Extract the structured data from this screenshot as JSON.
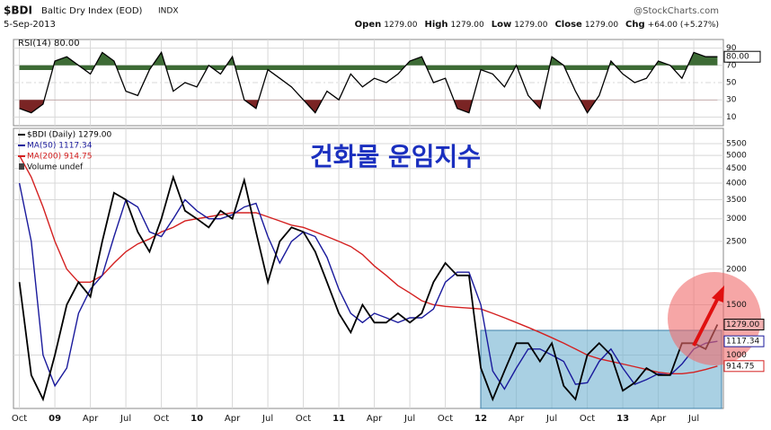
{
  "chart_data": {
    "type": "line",
    "symbol": "$BDI",
    "description": "Baltic Dry Index (EOD)",
    "exchange": "INDX",
    "date": "5-Sep-2013",
    "source": "@StockCharts.com",
    "quote": [
      {
        "label": "Open",
        "value": "1279.00"
      },
      {
        "label": "High",
        "value": "1279.00"
      },
      {
        "label": "Low",
        "value": "1279.00"
      },
      {
        "label": "Close",
        "value": "1279.00"
      },
      {
        "label": "Chg",
        "value": "+64.00 (+5.27%)"
      }
    ],
    "title": "건화물 운임지수",
    "volume_label": "Volume undef",
    "categories": [
      "Oct",
      null,
      null,
      "09",
      null,
      null,
      "Apr",
      null,
      null,
      "Jul",
      null,
      null,
      "Oct",
      null,
      null,
      "10",
      null,
      null,
      "Apr",
      null,
      null,
      "Jul",
      null,
      null,
      "Oct",
      null,
      null,
      "11",
      null,
      null,
      "Apr",
      null,
      null,
      "Jul",
      null,
      null,
      "Oct",
      null,
      null,
      "12",
      null,
      null,
      "Apr",
      null,
      null,
      "Jul",
      null,
      null,
      "Oct",
      null,
      null,
      "13",
      null,
      null,
      "Apr",
      null,
      null,
      "Jul",
      null,
      null
    ],
    "log_scale": true,
    "grid": true,
    "ylim": [
      650,
      6000
    ],
    "yticks": [
      1000,
      1500,
      2000,
      2500,
      3000,
      3500,
      4000,
      4500,
      5000,
      5500
    ],
    "series": [
      {
        "name": "$BDI (Daily) 1279.00",
        "color": "#000000",
        "values": [
          1800,
          850,
          700,
          1000,
          1500,
          1800,
          1600,
          2500,
          3700,
          3500,
          2700,
          2300,
          3000,
          4200,
          3200,
          3000,
          2800,
          3200,
          3000,
          4100,
          2700,
          1800,
          2500,
          2800,
          2700,
          2300,
          1800,
          1400,
          1200,
          1500,
          1300,
          1300,
          1400,
          1300,
          1400,
          1800,
          2100,
          1900,
          1900,
          900,
          700,
          880,
          1100,
          1100,
          950,
          1100,
          780,
          700,
          1000,
          1100,
          1000,
          750,
          800,
          900,
          850,
          850,
          1100,
          1100,
          1050,
          1279
        ],
        "value_labels": [
          null,
          null,
          null,
          null,
          null,
          null,
          null,
          null,
          null,
          null,
          null,
          null,
          null,
          null,
          null,
          null,
          null,
          null,
          null,
          null,
          null,
          null,
          null,
          null,
          null,
          null,
          null,
          null,
          null,
          null,
          null,
          null,
          null,
          null,
          null,
          null,
          null,
          null,
          null,
          null,
          null,
          null,
          null,
          null,
          null,
          null,
          null,
          null,
          null,
          null,
          null,
          null,
          null,
          null,
          null,
          null,
          null,
          null,
          null,
          "1279.00"
        ]
      },
      {
        "name": "MA(50) 1117.34",
        "color": "#1a1a9c",
        "values": [
          4000,
          2500,
          1000,
          780,
          900,
          1400,
          1700,
          1900,
          2600,
          3500,
          3300,
          2700,
          2600,
          3000,
          3500,
          3200,
          3000,
          3000,
          3100,
          3300,
          3400,
          2600,
          2100,
          2500,
          2700,
          2600,
          2200,
          1700,
          1400,
          1300,
          1400,
          1350,
          1300,
          1350,
          1350,
          1450,
          1800,
          1950,
          1950,
          1500,
          880,
          760,
          900,
          1050,
          1050,
          1000,
          950,
          790,
          800,
          950,
          1050,
          900,
          790,
          820,
          860,
          850,
          930,
          1050,
          1100,
          1117.34
        ],
        "value_labels": [
          null,
          null,
          null,
          null,
          null,
          null,
          null,
          null,
          null,
          null,
          null,
          null,
          null,
          null,
          null,
          null,
          null,
          null,
          null,
          null,
          null,
          null,
          null,
          null,
          null,
          null,
          null,
          null,
          null,
          null,
          null,
          null,
          null,
          null,
          null,
          null,
          null,
          null,
          null,
          null,
          null,
          null,
          null,
          null,
          null,
          null,
          null,
          null,
          null,
          null,
          null,
          null,
          null,
          null,
          null,
          null,
          null,
          null,
          null,
          "1117.34"
        ]
      },
      {
        "name": "MA(200) 914.75",
        "color": "#d42020",
        "values": [
          5000,
          4200,
          3300,
          2500,
          2000,
          1800,
          1800,
          1900,
          2100,
          2300,
          2450,
          2550,
          2700,
          2800,
          2950,
          3000,
          3050,
          3100,
          3150,
          3150,
          3150,
          3050,
          2950,
          2850,
          2800,
          2700,
          2600,
          2500,
          2400,
          2250,
          2050,
          1900,
          1750,
          1650,
          1550,
          1500,
          1480,
          1470,
          1460,
          1450,
          1400,
          1350,
          1300,
          1250,
          1200,
          1150,
          1100,
          1050,
          1000,
          970,
          950,
          930,
          910,
          890,
          870,
          860,
          860,
          870,
          890,
          914.75
        ],
        "value_labels": [
          null,
          null,
          null,
          null,
          null,
          null,
          null,
          null,
          null,
          null,
          null,
          null,
          null,
          null,
          null,
          null,
          null,
          null,
          null,
          null,
          null,
          null,
          null,
          null,
          null,
          null,
          null,
          null,
          null,
          null,
          null,
          null,
          null,
          null,
          null,
          null,
          null,
          null,
          null,
          null,
          null,
          null,
          null,
          null,
          null,
          null,
          null,
          null,
          null,
          null,
          null,
          null,
          null,
          null,
          null,
          null,
          null,
          null,
          null,
          "914.75"
        ]
      }
    ],
    "rsi": {
      "name": "RSI(14) 80.00",
      "color": "#000000",
      "overbought_color": "#3d6b35",
      "oversold_color": "#7a2424",
      "ylim": [
        0,
        100
      ],
      "yticks": [
        10,
        30,
        50,
        70,
        90
      ],
      "values": [
        20,
        15,
        25,
        75,
        80,
        70,
        60,
        85,
        75,
        40,
        35,
        65,
        85,
        40,
        50,
        45,
        70,
        60,
        80,
        30,
        20,
        65,
        55,
        45,
        30,
        15,
        40,
        30,
        60,
        45,
        55,
        50,
        60,
        75,
        80,
        50,
        55,
        20,
        15,
        65,
        60,
        45,
        70,
        35,
        20,
        80,
        70,
        40,
        15,
        35,
        75,
        60,
        50,
        55,
        75,
        70,
        55,
        85,
        80,
        80
      ],
      "value_labels": [
        null,
        null,
        null,
        null,
        null,
        null,
        null,
        null,
        null,
        null,
        null,
        null,
        null,
        null,
        null,
        null,
        null,
        null,
        null,
        null,
        null,
        null,
        null,
        null,
        null,
        null,
        null,
        null,
        null,
        null,
        null,
        null,
        null,
        null,
        null,
        null,
        null,
        null,
        null,
        null,
        null,
        null,
        null,
        null,
        null,
        null,
        null,
        null,
        null,
        null,
        null,
        null,
        null,
        null,
        null,
        null,
        null,
        null,
        null,
        "80.00"
      ]
    }
  }
}
